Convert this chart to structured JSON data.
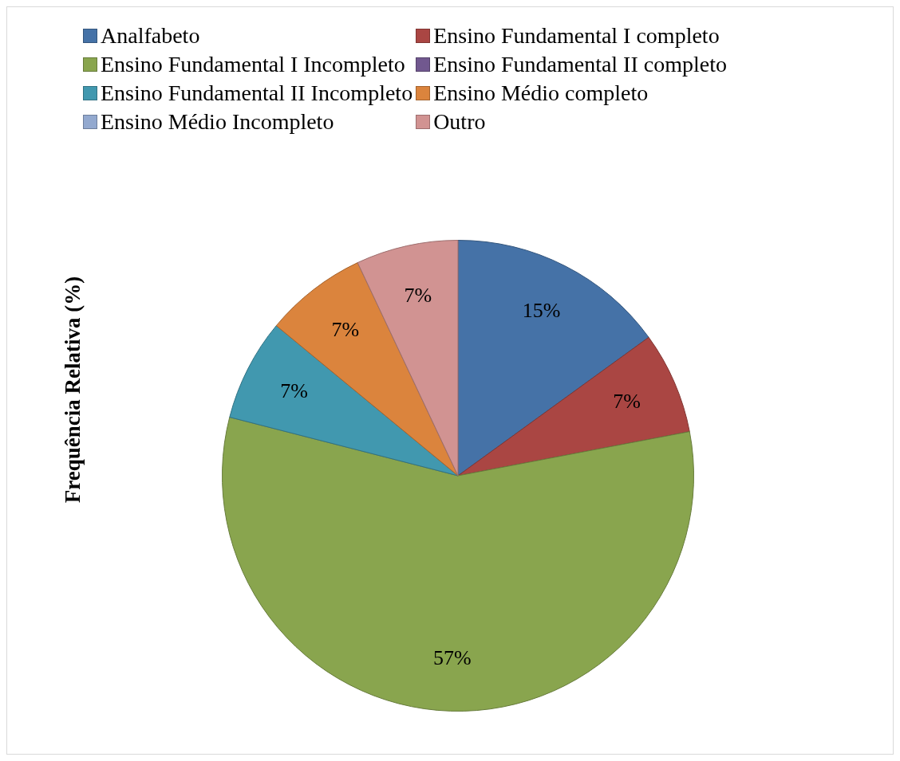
{
  "chart_data": {
    "type": "pie",
    "ylabel": "Frequência Relativa (%)",
    "categories": [
      "Analfabeto",
      "Ensino Fundamental I completo",
      "Ensino Fundamental I Incompleto",
      "Ensino Fundamental II completo",
      "Ensino Fundamental II Incompleto",
      "Ensino Médio completo",
      "Ensino Médio Incompleto",
      "Outro"
    ],
    "values": [
      15,
      7,
      57,
      0,
      7,
      7,
      0,
      7
    ],
    "colors": [
      "#4572a7",
      "#aa4643",
      "#89a54e",
      "#71588f",
      "#4198af",
      "#db843d",
      "#93a9cf",
      "#d19392"
    ],
    "value_labels": [
      "15%",
      "7%",
      "57%",
      null,
      "7%",
      "7%",
      null,
      "7%"
    ],
    "legend": "top"
  }
}
